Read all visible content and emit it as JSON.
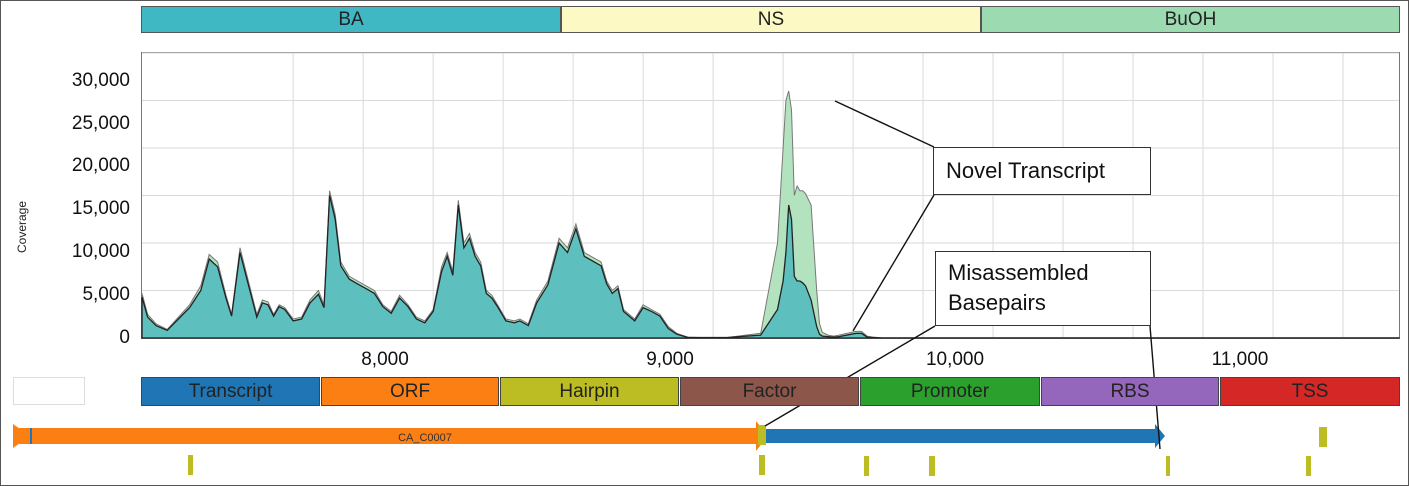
{
  "conditions": [
    {
      "label": "BA",
      "color": "#40b8c4"
    },
    {
      "label": "NS",
      "color": "#fdf9c5"
    },
    {
      "label": "BuOH",
      "color": "#9cdab2"
    }
  ],
  "legend": [
    {
      "label": "Transcript",
      "color": "#2076b4"
    },
    {
      "label": "ORF",
      "color": "#fc7f14"
    },
    {
      "label": "Hairpin",
      "color": "#bcbd22"
    },
    {
      "label": "Factor",
      "color": "#8c564b"
    },
    {
      "label": "Promoter",
      "color": "#2ca02c"
    },
    {
      "label": "RBS",
      "color": "#9467bd"
    },
    {
      "label": "TSS",
      "color": "#d62727"
    }
  ],
  "annotations": {
    "novel": "Novel Transcript",
    "misassembled_line1": "Misassembled",
    "misassembled_line2": "Basepairs"
  },
  "features": {
    "orf_label": "CA_C0007"
  },
  "chart_data": {
    "type": "area",
    "ylabel": "Coverage",
    "xlabel": "",
    "xlim": [
      7210,
      11700
    ],
    "ylim": [
      0,
      30000
    ],
    "x_ticks": [
      8000,
      9000,
      10000,
      11000
    ],
    "x_tick_labels": [
      "8,000",
      "9,000",
      "10,000",
      "11,000"
    ],
    "y_ticks": [
      0,
      5000,
      10000,
      15000,
      20000,
      25000,
      30000
    ],
    "y_tick_labels": [
      "0",
      "5,000",
      "10,000",
      "15,000",
      "20,000",
      "25,000",
      "30,000"
    ],
    "grid": true,
    "series": [
      {
        "name": "BuOH",
        "color": "#b3e2bf",
        "x": [
          7210,
          7230,
          7260,
          7300,
          7340,
          7380,
          7420,
          7450,
          7480,
          7510,
          7530,
          7560,
          7590,
          7620,
          7640,
          7660,
          7680,
          7700,
          7720,
          7750,
          7780,
          7810,
          7840,
          7860,
          7880,
          7900,
          7920,
          7950,
          7980,
          8010,
          8040,
          8070,
          8100,
          8130,
          8160,
          8190,
          8220,
          8250,
          8280,
          8300,
          8320,
          8340,
          8360,
          8380,
          8400,
          8420,
          8440,
          8460,
          8480,
          8510,
          8540,
          8560,
          8590,
          8620,
          8660,
          8700,
          8730,
          8760,
          8790,
          8820,
          8850,
          8870,
          8890,
          8910,
          8930,
          8950,
          8970,
          9000,
          9030,
          9060,
          9090,
          9120,
          9160,
          9200,
          9240,
          9270,
          9300,
          9420,
          9480,
          9500,
          9510,
          9520,
          9530,
          9540,
          9550,
          9560,
          9570,
          9580,
          9600,
          9620,
          9630,
          9640,
          9660,
          9680,
          9700,
          9760,
          9780,
          9800,
          9820,
          9840,
          9850,
          9870,
          11700
        ],
        "values": [
          4700,
          2500,
          1500,
          900,
          2200,
          3500,
          5500,
          8800,
          8000,
          4500,
          2500,
          9500,
          6000,
          2500,
          4000,
          3800,
          2500,
          3500,
          3200,
          2000,
          2200,
          4000,
          5000,
          3500,
          15500,
          13000,
          8000,
          6500,
          6000,
          5500,
          5000,
          3500,
          2800,
          4500,
          3500,
          2200,
          1800,
          3000,
          7500,
          9000,
          7000,
          14500,
          10000,
          11000,
          9000,
          8000,
          5000,
          4500,
          3500,
          2000,
          1800,
          2000,
          1500,
          4000,
          6000,
          10500,
          9500,
          12000,
          9000,
          8500,
          8000,
          6000,
          5000,
          5500,
          3000,
          2500,
          2000,
          3500,
          3000,
          2500,
          1200,
          500,
          100,
          50,
          50,
          50,
          50,
          500,
          10000,
          20000,
          25000,
          26000,
          24000,
          15000,
          16000,
          15500,
          15500,
          15200,
          14000,
          5000,
          1500,
          600,
          300,
          200,
          300,
          700,
          700,
          200,
          100,
          50,
          20,
          10,
          10
        ]
      },
      {
        "name": "BA",
        "color": "#5ebfbf",
        "x": [
          7210,
          7230,
          7260,
          7300,
          7340,
          7380,
          7420,
          7450,
          7480,
          7510,
          7530,
          7560,
          7590,
          7620,
          7640,
          7660,
          7680,
          7700,
          7720,
          7750,
          7780,
          7810,
          7840,
          7860,
          7880,
          7900,
          7920,
          7950,
          7980,
          8010,
          8040,
          8070,
          8100,
          8130,
          8160,
          8190,
          8220,
          8250,
          8280,
          8300,
          8320,
          8340,
          8360,
          8380,
          8400,
          8420,
          8440,
          8460,
          8480,
          8510,
          8540,
          8560,
          8590,
          8620,
          8660,
          8700,
          8730,
          8760,
          8790,
          8820,
          8850,
          8870,
          8890,
          8910,
          8930,
          8950,
          8970,
          9000,
          9030,
          9060,
          9090,
          9120,
          9160,
          9200,
          9240,
          9270,
          9300,
          9420,
          9480,
          9500,
          9510,
          9520,
          9530,
          9540,
          9550,
          9560,
          9570,
          9580,
          9600,
          9620,
          9630,
          9640,
          9660,
          9680,
          9700,
          9760,
          9780,
          9800,
          9820,
          9840,
          9850,
          9870,
          11700
        ],
        "values": [
          4300,
          2200,
          1300,
          800,
          2000,
          3200,
          5000,
          8300,
          7500,
          4200,
          2300,
          9000,
          5600,
          2200,
          3700,
          3500,
          2300,
          3300,
          3000,
          1800,
          2000,
          3700,
          4600,
          3200,
          15000,
          12500,
          7600,
          6200,
          5700,
          5200,
          4700,
          3300,
          2600,
          4200,
          3300,
          2000,
          1600,
          2800,
          7000,
          8600,
          6600,
          14000,
          9500,
          10500,
          8600,
          7600,
          4700,
          4200,
          3300,
          1800,
          1600,
          1800,
          1300,
          3700,
          5600,
          10000,
          9000,
          11500,
          8600,
          8100,
          7600,
          5700,
          4700,
          5200,
          2800,
          2300,
          1800,
          3200,
          2800,
          2300,
          1000,
          400,
          50,
          50,
          50,
          50,
          50,
          300,
          3000,
          6000,
          9000,
          14000,
          12500,
          6500,
          6000,
          6000,
          5800,
          5500,
          4000,
          1200,
          400,
          200,
          150,
          100,
          150,
          500,
          500,
          100,
          50,
          20,
          10,
          10,
          10
        ]
      }
    ]
  }
}
